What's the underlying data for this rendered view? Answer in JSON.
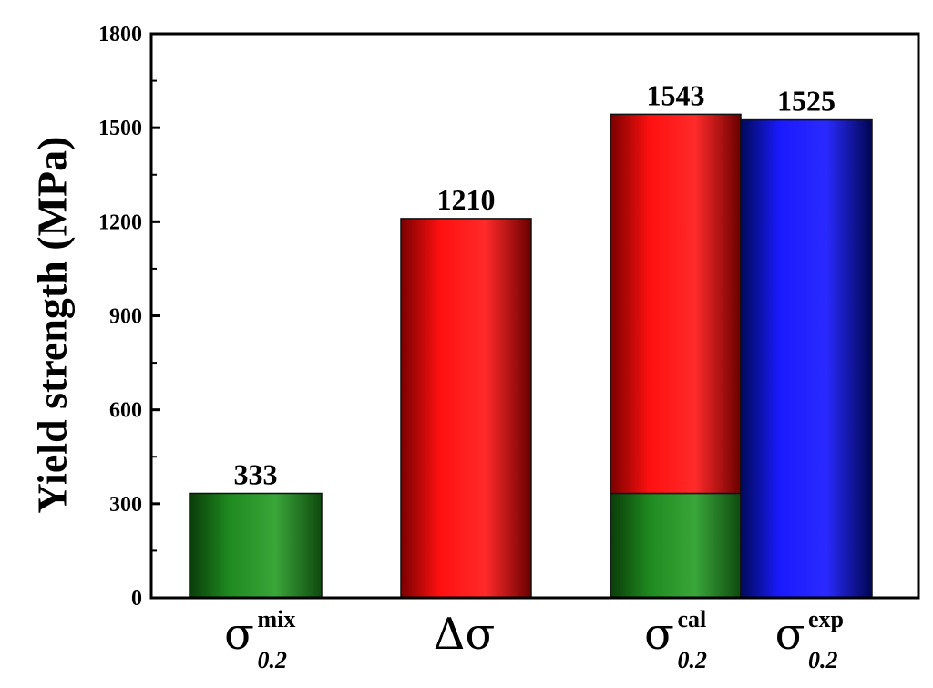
{
  "chart_data": {
    "type": "bar",
    "ylabel": "Yield strength (MPa)",
    "ylim": [
      0,
      1800
    ],
    "yticks": [
      "0",
      "300",
      "600",
      "900",
      "1200",
      "1500",
      "1800"
    ],
    "bars": [
      {
        "category": "σ0.2mix",
        "symbol": "σ",
        "sup": "mix",
        "sub": "0.2",
        "segments": [
          {
            "base": 0,
            "value": 333,
            "color": "green"
          }
        ],
        "label": "333"
      },
      {
        "category": "Δσ",
        "symbol": "Δσ",
        "sup": "",
        "sub": "",
        "segments": [
          {
            "base": 0,
            "value": 1210,
            "color": "red"
          }
        ],
        "label": "1210"
      },
      {
        "category": "σ0.2cal",
        "symbol": "σ",
        "sup": "cal",
        "sub": "0.2",
        "segments": [
          {
            "base": 0,
            "value": 333,
            "color": "green"
          },
          {
            "base": 333,
            "value": 1543,
            "color": "red"
          }
        ],
        "label": "1543"
      },
      {
        "category": "σ0.2exp",
        "symbol": "σ",
        "sup": "exp",
        "sub": "0.2",
        "segments": [
          {
            "base": 0,
            "value": 1525,
            "color": "blue"
          }
        ],
        "label": "1525"
      }
    ],
    "colors": {
      "green": "#1f8a1f",
      "red": "#ff1010",
      "blue": "#1a1aff"
    },
    "grid": false
  }
}
